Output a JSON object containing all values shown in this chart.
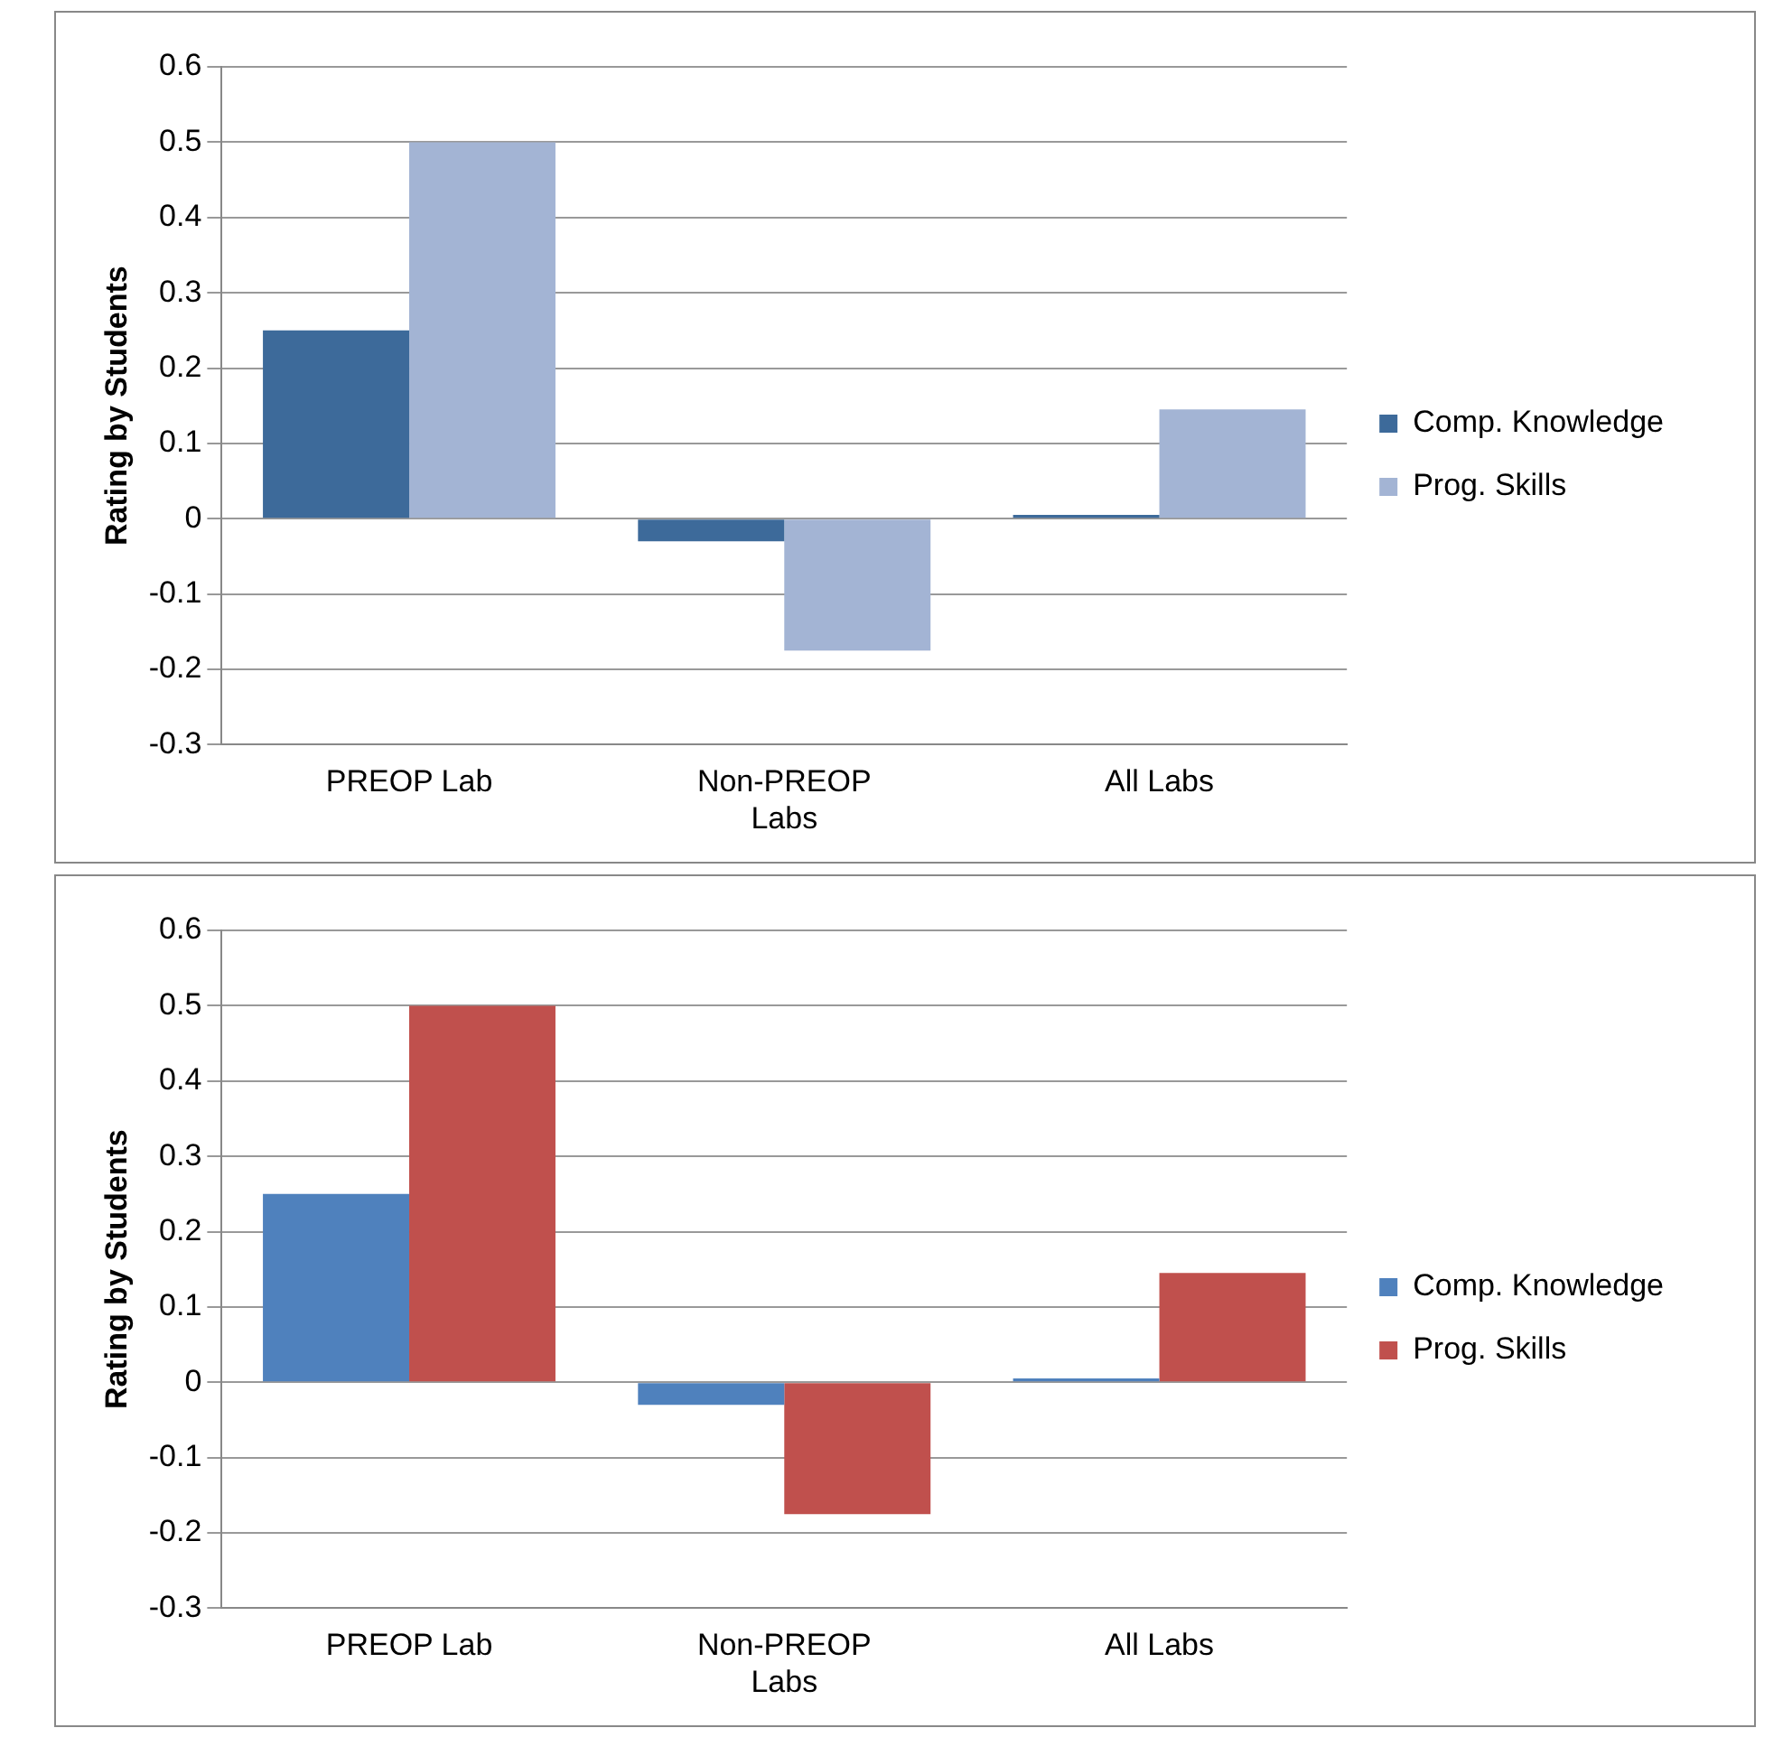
{
  "chart_data": [
    {
      "type": "bar",
      "ylabel": "Rating by Students",
      "categories": [
        "PREOP Lab",
        "Non-PREOP Labs",
        "All Labs"
      ],
      "series": [
        {
          "name": "Comp. Knowledge",
          "color": "#3d6a9a",
          "values": [
            0.25,
            -0.03,
            0.005
          ]
        },
        {
          "name": "Prog. Skills",
          "color": "#a3b4d4",
          "values": [
            0.5,
            -0.175,
            0.145
          ]
        }
      ],
      "ylim": [
        -0.3,
        0.6
      ],
      "yticks": [
        -0.3,
        -0.2,
        -0.1,
        0,
        0.1,
        0.2,
        0.3,
        0.4,
        0.5,
        0.6
      ],
      "grid": "y",
      "legend": "right"
    },
    {
      "type": "bar",
      "ylabel": "Rating by Students",
      "categories": [
        "PREOP Lab",
        "Non-PREOP Labs",
        "All Labs"
      ],
      "series": [
        {
          "name": "Comp. Knowledge",
          "color": "#4f81bd",
          "values": [
            0.25,
            -0.03,
            0.005
          ]
        },
        {
          "name": "Prog. Skills",
          "color": "#c0504d",
          "values": [
            0.5,
            -0.175,
            0.145
          ]
        }
      ],
      "ylim": [
        -0.3,
        0.6
      ],
      "yticks": [
        -0.3,
        -0.2,
        -0.1,
        0,
        0.1,
        0.2,
        0.3,
        0.4,
        0.5,
        0.6
      ],
      "grid": "y",
      "legend": "right"
    }
  ]
}
